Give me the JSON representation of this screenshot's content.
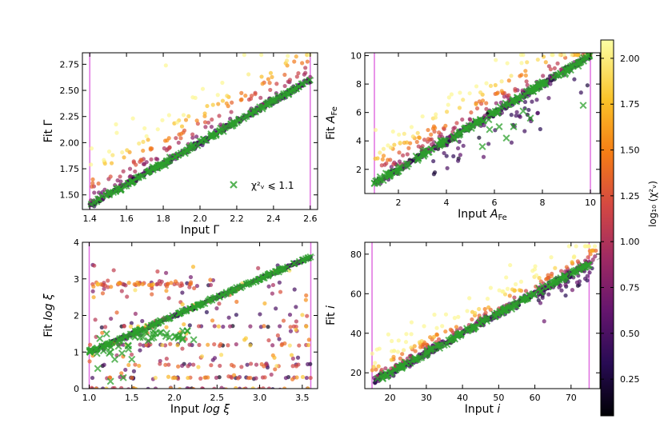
{
  "chart_data": {
    "type": "scatter",
    "colorbar": {
      "label": "log₁₀ (χ²ᵥ)",
      "range": [
        0.05,
        2.1
      ],
      "ticks": [
        "0.25",
        "0.50",
        "0.75",
        "1.00",
        "1.25",
        "1.50",
        "1.75",
        "2.00"
      ],
      "tick_values": [
        0.25,
        0.5,
        0.75,
        1.0,
        1.25,
        1.5,
        1.75,
        2.0
      ],
      "colormap": "inferno"
    },
    "legend": {
      "label": "χ²ᵥ ⩽ 1.1",
      "marker": "x",
      "color": "#2ca02c",
      "placement": "lower-right"
    },
    "panels": [
      {
        "id": "gamma",
        "xlabel": "Input Γ",
        "ylabel": "Fit Γ",
        "xlim": [
          1.36,
          2.64
        ],
        "ylim": [
          1.36,
          2.86
        ],
        "xticks": [
          1.4,
          1.6,
          1.8,
          2.0,
          2.2,
          2.4,
          2.6
        ],
        "xtick_labels": [
          "1.4",
          "1.6",
          "1.8",
          "2.0",
          "2.2",
          "2.4",
          "2.6"
        ],
        "yticks": [
          1.5,
          1.75,
          2.0,
          2.25,
          2.5,
          2.75
        ],
        "ytick_labels": [
          "1.50",
          "1.75",
          "2.00",
          "2.25",
          "2.50",
          "2.75"
        ],
        "vlines": [
          1.4,
          2.6
        ],
        "one_to_one": [
          1.4,
          2.62
        ],
        "scatter_kind": "gamma",
        "show_legend": true
      },
      {
        "id": "afe",
        "xlabel": "Input A_Fe",
        "ylabel": "Fit A_Fe",
        "xlim": [
          0.6,
          10.4
        ],
        "ylim": [
          0.3,
          10.2
        ],
        "xticks": [
          2,
          4,
          6,
          8,
          10
        ],
        "xtick_labels": [
          "2",
          "4",
          "6",
          "8",
          "10"
        ],
        "yticks": [
          2,
          4,
          6,
          8,
          10
        ],
        "ytick_labels": [
          "2",
          "4",
          "6",
          "8",
          "10"
        ],
        "vlines": [
          1.0,
          10.0
        ],
        "one_to_one": [
          1.0,
          10.0
        ],
        "scatter_kind": "afe",
        "show_legend": false
      },
      {
        "id": "logxi",
        "xlabel": "Input log ξ",
        "ylabel": "Fit log ξ",
        "xlim": [
          0.92,
          3.68
        ],
        "ylim": [
          0.0,
          4.0
        ],
        "xticks": [
          1.0,
          1.5,
          2.0,
          2.5,
          3.0,
          3.5
        ],
        "xtick_labels": [
          "1.0",
          "1.5",
          "2.0",
          "2.5",
          "3.0",
          "3.5"
        ],
        "yticks": [
          0,
          1,
          2,
          3,
          4
        ],
        "ytick_labels": [
          "0",
          "1",
          "2",
          "3",
          "4"
        ],
        "vlines": [
          1.0,
          3.6
        ],
        "one_to_one": [
          1.0,
          3.65
        ],
        "scatter_kind": "logxi",
        "show_legend": false
      },
      {
        "id": "incl",
        "xlabel": "Input i",
        "ylabel": "Fit i",
        "xlim": [
          13,
          78
        ],
        "ylim": [
          12,
          86
        ],
        "xticks": [
          20,
          30,
          40,
          50,
          60,
          70
        ],
        "xtick_labels": [
          "20",
          "30",
          "40",
          "50",
          "60",
          "70"
        ],
        "yticks": [
          20,
          40,
          60,
          80
        ],
        "ytick_labels": [
          "20",
          "40",
          "60",
          "80"
        ],
        "vlines": [
          15,
          75
        ],
        "one_to_one": [
          15,
          78
        ],
        "scatter_kind": "incl",
        "show_legend": false
      }
    ]
  }
}
